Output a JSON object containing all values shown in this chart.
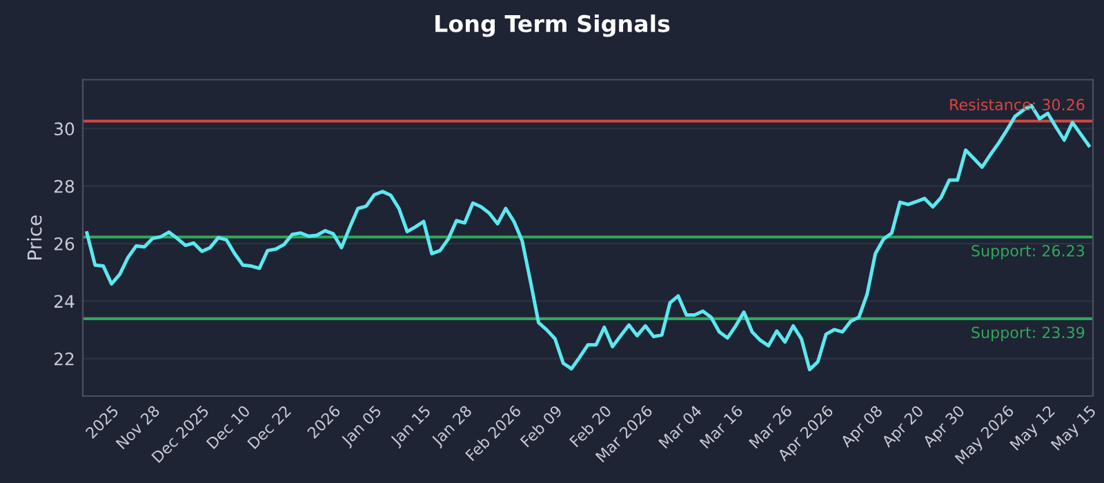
{
  "chart_data": {
    "type": "line",
    "title": "Long Term Signals",
    "ylabel": "Price",
    "categories": [
      null,
      null,
      null,
      "2025",
      null,
      null,
      null,
      null,
      "Nov 28",
      null,
      null,
      null,
      null,
      null,
      "Dec 2025",
      null,
      null,
      null,
      null,
      "Dec 10",
      null,
      null,
      null,
      null,
      "Dec 22",
      null,
      null,
      null,
      null,
      null,
      "2026",
      null,
      null,
      null,
      null,
      "Jan 05",
      null,
      null,
      null,
      null,
      null,
      "Jan 15",
      null,
      null,
      null,
      null,
      "Jan 28",
      null,
      null,
      null,
      null,
      null,
      "Feb 2026",
      null,
      null,
      null,
      null,
      "Feb 09",
      null,
      null,
      null,
      null,
      null,
      "Feb 20",
      null,
      null,
      null,
      null,
      "Mar 2026",
      null,
      null,
      null,
      null,
      null,
      "Mar 04",
      null,
      null,
      null,
      null,
      "Mar 16",
      null,
      null,
      null,
      null,
      null,
      "Mar 26",
      null,
      null,
      null,
      null,
      "Apr 2026",
      null,
      null,
      null,
      null,
      null,
      "Apr 08",
      null,
      null,
      null,
      null,
      "Apr 20",
      null,
      null,
      null,
      null,
      "Apr 30",
      null,
      null,
      null,
      null,
      null,
      "May 2026",
      null,
      null,
      null,
      null,
      "May 12",
      null,
      null,
      null,
      null,
      "May 15"
    ],
    "series": [
      {
        "color": "#5ce8f0",
        "values": [
          26.37,
          25.25,
          25.22,
          24.6,
          24.93,
          25.52,
          25.92,
          25.89,
          26.18,
          26.24,
          26.4,
          26.18,
          25.94,
          26.02,
          25.73,
          25.86,
          26.21,
          26.13,
          25.65,
          25.25,
          25.22,
          25.14,
          25.76,
          25.81,
          25.97,
          26.32,
          26.37,
          26.26,
          26.29,
          26.45,
          26.34,
          25.86,
          26.56,
          27.22,
          27.3,
          27.7,
          27.81,
          27.68,
          27.22,
          26.42,
          26.58,
          26.77,
          25.65,
          25.76,
          26.16,
          26.8,
          26.72,
          27.41,
          27.28,
          27.06,
          26.69,
          27.22,
          26.77,
          26.1,
          24.7,
          23.25,
          23.0,
          22.69,
          21.84,
          21.65,
          22.05,
          22.48,
          22.48,
          23.09,
          22.42,
          22.8,
          23.17,
          22.8,
          23.14,
          22.77,
          22.82,
          23.94,
          24.18,
          23.52,
          23.52,
          23.65,
          23.44,
          22.93,
          22.72,
          23.14,
          23.62,
          22.93,
          22.64,
          22.45,
          22.96,
          22.58,
          23.14,
          22.69,
          21.62,
          21.89,
          22.85,
          23.01,
          22.93,
          23.3,
          23.44,
          24.24,
          25.65,
          26.16,
          26.37,
          27.44,
          27.36,
          27.46,
          27.57,
          27.28,
          27.6,
          28.21,
          28.21,
          29.25,
          28.96,
          28.66,
          29.09,
          29.49,
          29.94,
          30.42,
          30.64,
          30.8,
          30.34,
          30.53,
          30.05,
          29.6,
          30.21,
          29.81,
          29.41
        ]
      }
    ],
    "ylim": [
      20.7,
      31.7
    ],
    "yticks": [
      22,
      24,
      26,
      28,
      30
    ],
    "grid": "y",
    "ref_lines": [
      {
        "axis": "y",
        "value": 30.26,
        "label": "Resistance: 30.26",
        "color": "#d9453f"
      },
      {
        "axis": "y",
        "value": 26.23,
        "label": "Support: 26.23",
        "color": "#2fa85c"
      },
      {
        "axis": "y",
        "value": 23.39,
        "label": "Support: 23.39",
        "color": "#2fa85c"
      }
    ]
  }
}
